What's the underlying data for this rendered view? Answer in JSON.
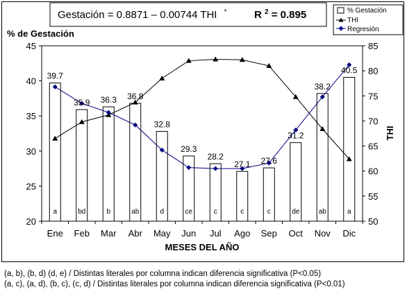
{
  "chart_data": {
    "type": "bar",
    "equation": "Gestación = 0.8871 – 0.00744 THI",
    "equation_mark": "*",
    "r2_label": "R",
    "r2_sup": "2",
    "r2_value": " = 0.895",
    "ylabel": "% de Gestación",
    "y2label": "THI",
    "xlabel": "MESES DEL AÑO",
    "ylim": [
      20,
      45
    ],
    "y2lim": [
      50,
      85
    ],
    "yticks": [
      "20",
      "25",
      "30",
      "35",
      "40",
      "45"
    ],
    "y2ticks": [
      "50",
      "55",
      "60",
      "65",
      "70",
      "75",
      "80",
      "85"
    ],
    "categories": [
      "Ene",
      "Feb",
      "Mar",
      "Abr",
      "May",
      "Jun",
      "Jul",
      "Ago",
      "Sep",
      "Oct",
      "Nov",
      "Dic"
    ],
    "bar_values": [
      39.7,
      35.9,
      36.3,
      36.8,
      32.8,
      29.3,
      28.2,
      27.1,
      27.6,
      31.2,
      38.2,
      40.5
    ],
    "bar_labels": [
      "39.7",
      "35.9",
      "36.3",
      "36.8",
      "32.8",
      "29.3",
      "28.2",
      "27.1",
      "27.6",
      "31.2",
      "38.2",
      "40.5"
    ],
    "letters": [
      "a",
      "bd",
      "b",
      "ab",
      "d",
      "ce",
      "c",
      "c",
      "c",
      "de",
      "ab",
      "a"
    ],
    "thi_values": [
      66.5,
      69.8,
      71.2,
      73.7,
      78.5,
      82.0,
      82.3,
      82.2,
      81.0,
      74.8,
      68.4,
      62.4
    ],
    "regression_values": [
      76.8,
      73.5,
      71.7,
      69.2,
      64.2,
      60.7,
      60.5,
      60.5,
      61.6,
      68.2,
      74.8,
      81.2
    ],
    "legend": [
      "% Gestación",
      "THI",
      "Regresión"
    ],
    "legend_position": "top-right",
    "grid": false,
    "colors": {
      "bars": "#ffffff",
      "thi": "#000000",
      "regression": "#000080"
    }
  },
  "footnotes": [
    "(a, b), (b, d) (d, e) / Distintas literales por columna indican diferencia  significativa  (P<0.05)",
    "(a, c), (a, d), (b, c), (c, d) / Distintas literales por columna indican diferencia  significativa  (P<0.01)"
  ]
}
